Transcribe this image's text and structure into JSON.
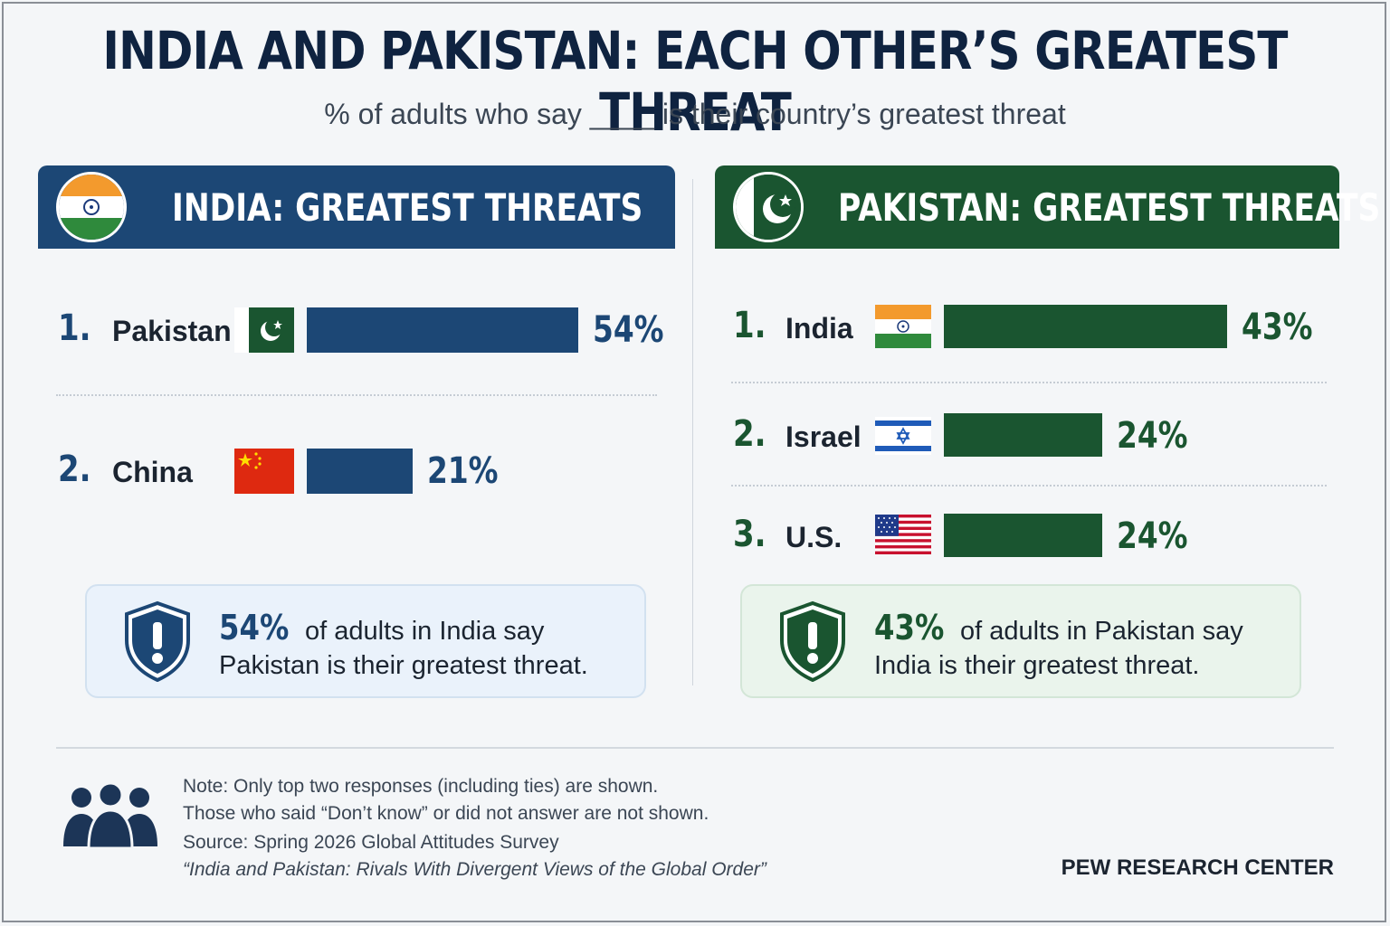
{
  "title": "INDIA AND PAKISTAN: EACH OTHER’S GREATEST THREAT",
  "subtitle": "% of adults who say ____ is their country’s greatest threat",
  "india_panel": {
    "header": "INDIA: GREATEST THREATS",
    "color": "#1c4775",
    "callout": {
      "value": "54%",
      "line1": "of adults in India say",
      "line2": "Pakistan is their greatest threat."
    }
  },
  "pakistan_panel": {
    "header": "PAKISTAN: GREATEST THREATS",
    "color": "#1a5530",
    "callout": {
      "value": "43%",
      "line1": "of adults in Pakistan say",
      "line2": "India is their greatest threat."
    }
  },
  "chart_data": [
    {
      "type": "bar",
      "orientation": "horizontal",
      "title": "INDIA: GREATEST THREATS",
      "categories": [
        "Pakistan",
        "China"
      ],
      "ranks": [
        "1.",
        "2."
      ],
      "values": [
        54,
        21
      ],
      "value_labels": [
        "54%",
        "21%"
      ],
      "flags": [
        "pakistan-flag",
        "china-flag"
      ],
      "unit": "%",
      "grid": false
    },
    {
      "type": "bar",
      "orientation": "horizontal",
      "title": "PAKISTAN: GREATEST THREATS",
      "categories": [
        "India",
        "Israel",
        "U.S."
      ],
      "ranks": [
        "1.",
        "2.",
        "3."
      ],
      "values": [
        43,
        24,
        24
      ],
      "value_labels": [
        "43%",
        "24%",
        "24%"
      ],
      "flags": [
        "india-flag",
        "israel-flag",
        "us-flag"
      ],
      "unit": "%",
      "grid": false
    }
  ],
  "footer": {
    "note1": "Note: Only top two responses (including ties) are shown.",
    "note2": "Those who said “Don’t know” or did not answer are not shown.",
    "source": "Source: Spring 2026 Global Attitudes Survey",
    "report": "“India and Pakistan: Rivals With Divergent Views of the Global Order”",
    "brand": "PEW RESEARCH CENTER"
  }
}
